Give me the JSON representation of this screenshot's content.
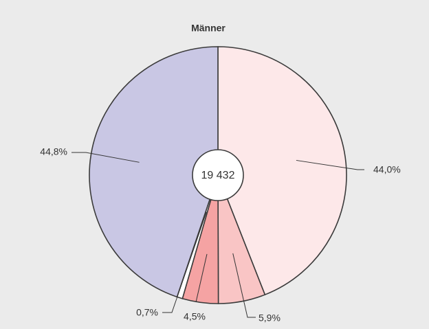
{
  "chart_data": {
    "type": "pie",
    "title": "Männer",
    "center_text": "19 432",
    "categories": [
      null,
      null,
      null,
      null,
      null
    ],
    "values": [
      44.0,
      5.9,
      4.5,
      0.7,
      44.8
    ],
    "value_labels": [
      "44,0%",
      "5,9%",
      "4,5%",
      "0,7%",
      "44,8%"
    ],
    "colors": [
      "#fde8e9",
      "#f9c5c5",
      "#f5a3a3",
      "#ffffff",
      "#c9c7e4"
    ]
  }
}
